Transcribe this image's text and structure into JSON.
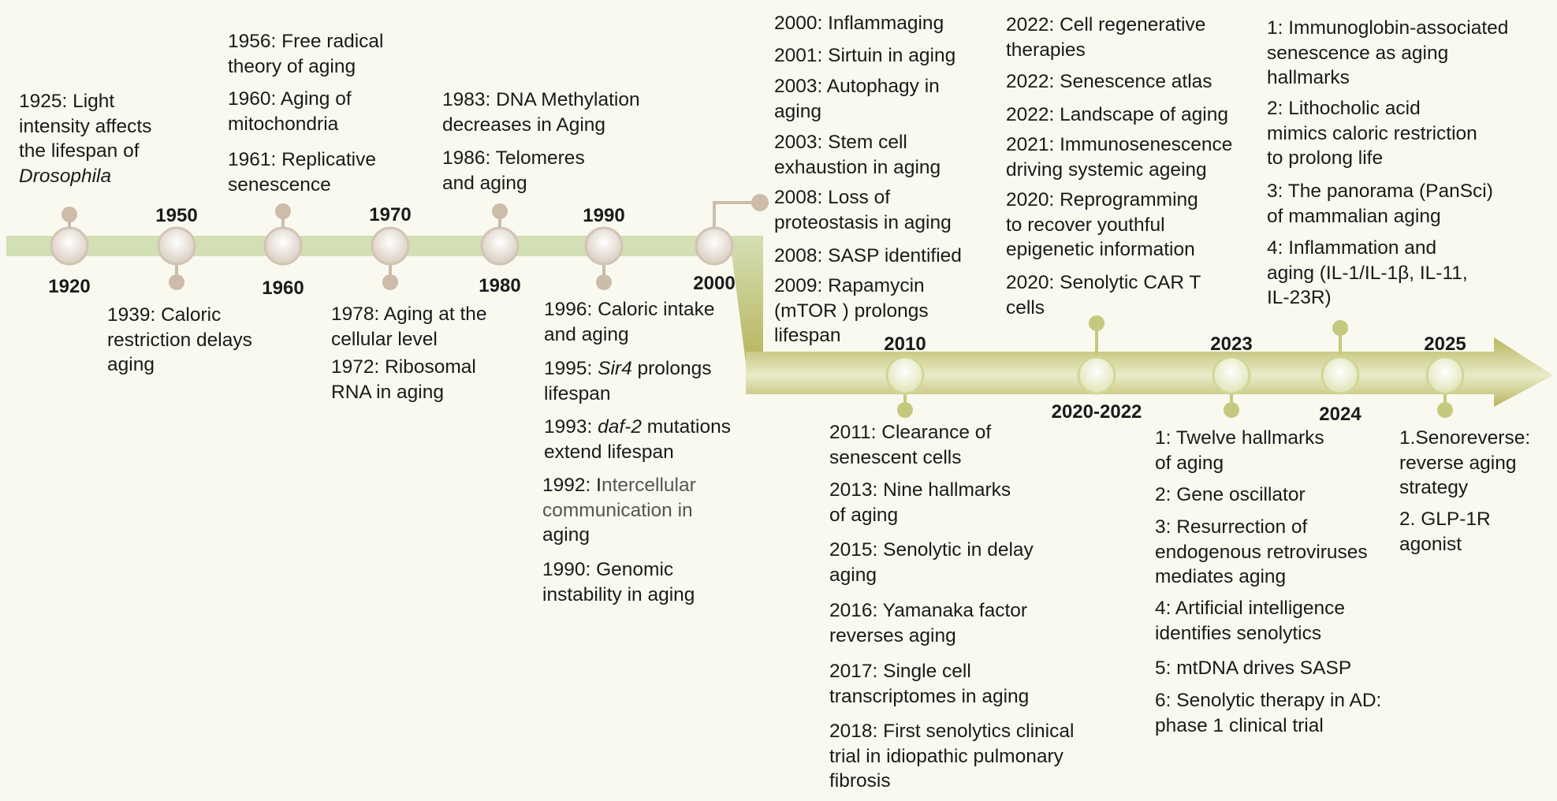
{
  "colors": {
    "background": "#f9f9f0",
    "early_bar": "#d3dfb4",
    "late_bar_dark": "#b9b55f",
    "late_bar_light": "#e9ebc9",
    "node_fill": "#e6ddd3",
    "node_ring": "#d2c4b4",
    "pin": "#ccbca9",
    "node_green": "#e9efc6",
    "node_green_ring": "#d0d694",
    "pin_green": "#c5c97f"
  },
  "years": {
    "y1920": "1920",
    "y1950": "1950",
    "y1960": "1960",
    "y1970": "1970",
    "y1980": "1980",
    "y1990": "1990",
    "y2000": "2000",
    "y2010": "2010",
    "y2020_2022": "2020-2022",
    "y2023": "2023",
    "y2024": "2024",
    "y2025": "2025"
  },
  "events": {
    "e1925": {
      "line1": "1925: Light\nintensity affects\nthe lifespan of",
      "line2": "Drosophila"
    },
    "e1939": "1939: Caloric\nrestriction delays\naging",
    "e1956": "1956: Free radical\ntheory of aging",
    "e1960": "1960: Aging of\nmitochondria",
    "e1961": "1961: Replicative\nsenescence",
    "e1978": "1978: Aging at the\ncellular level",
    "e1972": "1972: Ribosomal\nRNA in aging",
    "e1983": "1983: DNA Methylation\ndecreases in Aging",
    "e1986": "1986: Telomeres\nand aging",
    "e1996": "1996: Caloric intake\nand aging",
    "e1995": {
      "pre": "1995: ",
      "italic": "Sir4",
      "post": " prolongs\nlifespan"
    },
    "e1993": {
      "pre": "1993: ",
      "italic": "daf-2",
      "post": " mutations\nextend lifespan"
    },
    "e1992": {
      "pre": "1992: I",
      "grey": "ntercellular\ncommunication in",
      "post": "\naging"
    },
    "e1990": "1990: Genomic\ninstability in aging",
    "e2000": "2000: Inflammaging",
    "e2001": "2001: Sirtuin in aging",
    "e2003a": "2003: Autophagy in\naging",
    "e2003b": "2003: Stem cell\nexhaustion in aging",
    "e2008a": "2008: Loss of\nproteostasis in aging",
    "e2008b": "2008: SASP identified",
    "e2009": "2009: Rapamycin\n(mTOR ) prolongs\nlifespan",
    "e2022a": "2022: Cell regenerative\ntherapies",
    "e2022b": "2022: Senescence atlas",
    "e2022c": "2022: Landscape of aging",
    "e2021": "2021: Immunosenescence\ndriving systemic ageing",
    "e2020a": "2020: Reprogramming\nto recover youthful\nepigenetic information",
    "e2020b": "2020: Senolytic CAR T\ncells",
    "e2024_1": "1: Immunoglobin-associated\nsenescence as aging\nhallmarks",
    "e2024_2": "2: Lithocholic acid\nmimics caloric restriction\nto prolong life",
    "e2024_3": "3: The panorama (PanSci)\nof mammalian aging",
    "e2024_4": "4: Inflammation and\naging (IL-1/IL-1β, IL-11,\nIL-23R)",
    "e2011": "2011: Clearance of\nsenescent cells",
    "e2013": "2013: Nine hallmarks\nof aging",
    "e2015": "2015: Senolytic in delay\naging",
    "e2016": "2016: Yamanaka factor\nreverses aging",
    "e2017": "2017: Single cell\ntranscriptomes in aging",
    "e2018": "2018: First senolytics clinical\ntrial in idiopathic pulmonary\nfibrosis",
    "e2023_1": "1: Twelve hallmarks\nof aging",
    "e2023_2": "2: Gene oscillator",
    "e2023_3": "3: Resurrection of\nendogenous retroviruses\nmediates aging",
    "e2023_4": "4: Artificial intelligence\nidentifies senolytics",
    "e2023_5": "5: mtDNA drives SASP",
    "e2023_6": "6: Senolytic therapy in AD:\nphase 1 clinical trial",
    "e2025_1": "1.Senoreverse:\nreverse aging\nstrategy",
    "e2025_2": "2. GLP-1R\nagonist"
  }
}
